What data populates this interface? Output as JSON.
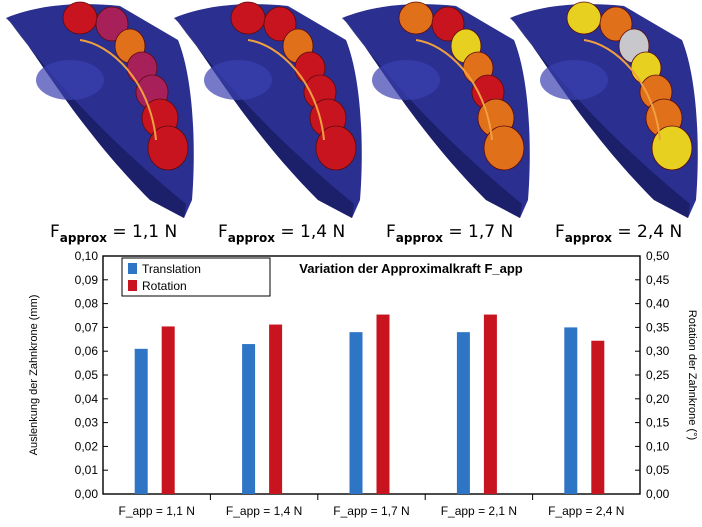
{
  "captions": [
    {
      "label": "F",
      "sub": "approx",
      "value": " = 1,1 N"
    },
    {
      "label": "F",
      "sub": "approx",
      "value": " = 1,4 N"
    },
    {
      "label": "F",
      "sub": "approx",
      "value": " = 1,7 N"
    },
    {
      "label": "F",
      "sub": "approx",
      "value": " = 2,4 N"
    }
  ],
  "colors": {
    "jaw": "#2b2f8f",
    "jaw_dark": "#1c1f6a",
    "tooth_red": "#c8141e",
    "tooth_magenta": "#a8205a",
    "tooth_orange": "#e0701a",
    "tooth_yellow": "#e8d020",
    "tooth_gray": "#c8c8cc",
    "translation": "#2e75c6",
    "rotation": "#c8141e"
  },
  "chart_data": {
    "type": "bar",
    "title": "Variation der Approximalkraft F_app",
    "categories": [
      "F_app = 1,1 N",
      "F_app = 1,4 N",
      "F_app = 1,7 N",
      "F_app = 2,1 N",
      "F_app = 2,4 N"
    ],
    "ylabel": "Auslenkung der Zahnkrone (mm)",
    "y2label": "Rotation der Zahnkrone (°)",
    "ylim": [
      0,
      0.1
    ],
    "y2lim": [
      0,
      0.5
    ],
    "yticks": [
      "0,00",
      "0,01",
      "0,02",
      "0,03",
      "0,04",
      "0,05",
      "0,06",
      "0,07",
      "0,08",
      "0,09",
      "0,10"
    ],
    "y2ticks": [
      "0,00",
      "0,05",
      "0,10",
      "0,15",
      "0,20",
      "0,25",
      "0,30",
      "0,35",
      "0,40",
      "0,45",
      "0,50"
    ],
    "legend_position": "top-left",
    "grid": false,
    "series": [
      {
        "name": "Translation",
        "axis": "left",
        "values": [
          0.061,
          0.063,
          0.068,
          0.068,
          0.07
        ]
      },
      {
        "name": "Rotation",
        "axis": "right",
        "values": [
          0.352,
          0.356,
          0.377,
          0.377,
          0.322
        ]
      }
    ]
  }
}
